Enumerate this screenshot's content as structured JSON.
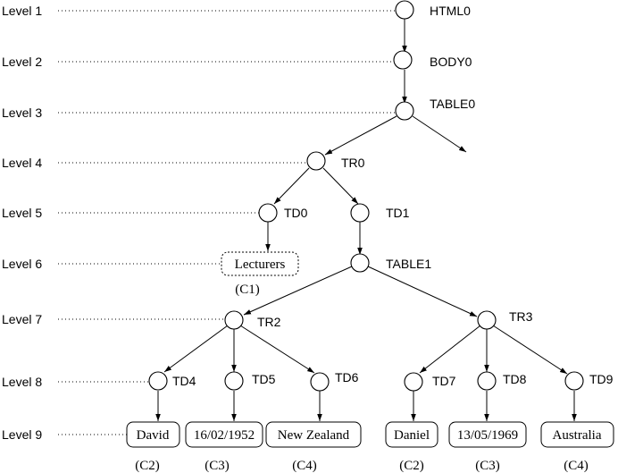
{
  "levels": [
    "Level 1",
    "Level 2",
    "Level 3",
    "Level 4",
    "Level 5",
    "Level 6",
    "Level 7",
    "Level 8",
    "Level 9"
  ],
  "nodes": {
    "html0": "HTML0",
    "body0": "BODY0",
    "table0": "TABLE0",
    "tr0": "TR0",
    "td0": "TD0",
    "td1": "TD1",
    "table1": "TABLE1",
    "tr2": "TR2",
    "tr3": "TR3",
    "td4": "TD4",
    "td5": "TD5",
    "td6": "TD6",
    "td7": "TD7",
    "td8": "TD8",
    "td9": "TD9"
  },
  "leaves": {
    "lecturers": "Lecturers",
    "david": "David",
    "date1": "16/02/1952",
    "nz": "New Zealand",
    "daniel": "Daniel",
    "date2": "13/05/1969",
    "australia": "Australia"
  },
  "classes": {
    "lecturers": "(C1)",
    "david": "(C2)",
    "date1": "(C3)",
    "nz": "(C4)",
    "daniel": "(C2)",
    "date2": "(C3)",
    "australia": "(C4)"
  }
}
